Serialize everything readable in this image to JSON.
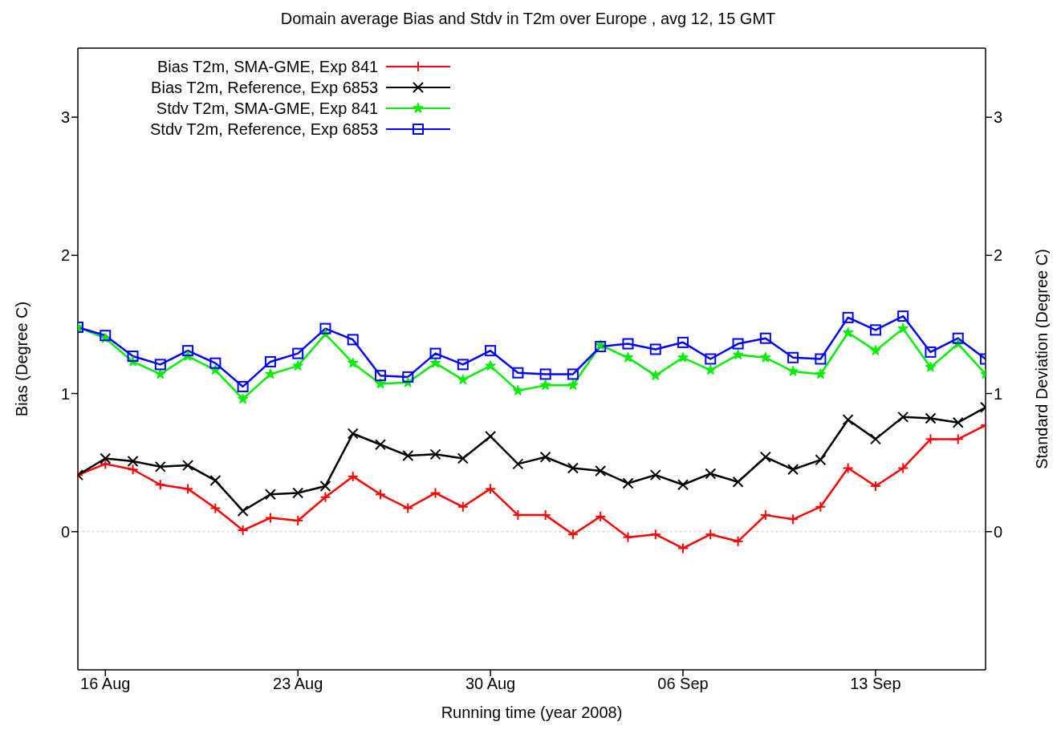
{
  "chart_data": {
    "type": "line",
    "title": "Domain average Bias and Stdv in T2m over Europe , avg 12, 15 GMT",
    "xlabel": "Running time (year 2008)",
    "ylabel": "Bias (Degree C)",
    "y2label": "Standard Deviation (Degree C)",
    "x": [
      "2008-08-15",
      "2008-08-16",
      "2008-08-17",
      "2008-08-18",
      "2008-08-19",
      "2008-08-20",
      "2008-08-21",
      "2008-08-22",
      "2008-08-23",
      "2008-08-24",
      "2008-08-25",
      "2008-08-26",
      "2008-08-27",
      "2008-08-28",
      "2008-08-29",
      "2008-08-30",
      "2008-08-31",
      "2008-09-01",
      "2008-09-02",
      "2008-09-03",
      "2008-09-04",
      "2008-09-05",
      "2008-09-06",
      "2008-09-07",
      "2008-09-08",
      "2008-09-09",
      "2008-09-10",
      "2008-09-11",
      "2008-09-12",
      "2008-09-13",
      "2008-09-14",
      "2008-09-15",
      "2008-09-16",
      "2008-09-17"
    ],
    "series": [
      {
        "name": "Bias T2m, SMA-GME, Exp 841",
        "color": "#ff0000",
        "marker": "plus",
        "values": [
          0.41,
          0.49,
          0.45,
          0.34,
          0.31,
          0.17,
          0.01,
          0.1,
          0.08,
          0.25,
          0.4,
          0.27,
          0.17,
          0.28,
          0.18,
          0.31,
          0.12,
          0.12,
          -0.02,
          0.11,
          -0.04,
          -0.02,
          -0.12,
          -0.02,
          -0.07,
          0.12,
          0.09,
          0.18,
          0.46,
          0.33,
          0.46,
          0.67,
          0.67,
          0.77
        ]
      },
      {
        "name": "Bias T2m, Reference, Exp 6853",
        "color": "#000000",
        "marker": "cross",
        "values": [
          0.41,
          0.53,
          0.51,
          0.47,
          0.48,
          0.37,
          0.15,
          0.27,
          0.28,
          0.33,
          0.71,
          0.63,
          0.55,
          0.56,
          0.53,
          0.69,
          0.49,
          0.54,
          0.46,
          0.44,
          0.35,
          0.41,
          0.34,
          0.42,
          0.36,
          0.54,
          0.45,
          0.52,
          0.81,
          0.67,
          0.83,
          0.82,
          0.79,
          0.9
        ]
      },
      {
        "name": "Stdv T2m, SMA-GME, Exp 841",
        "color": "#00ee00",
        "marker": "star",
        "axis": "y2",
        "values": [
          1.48,
          1.4,
          1.23,
          1.14,
          1.27,
          1.17,
          0.96,
          1.14,
          1.2,
          1.43,
          1.22,
          1.07,
          1.08,
          1.22,
          1.1,
          1.2,
          1.02,
          1.06,
          1.06,
          1.35,
          1.26,
          1.13,
          1.26,
          1.17,
          1.28,
          1.26,
          1.16,
          1.14,
          1.44,
          1.31,
          1.47,
          1.19,
          1.36,
          1.14
        ]
      },
      {
        "name": "Stdv T2m, Reference, Exp 6853",
        "color": "#0000ff",
        "marker": "square",
        "axis": "y2",
        "values": [
          1.48,
          1.42,
          1.27,
          1.21,
          1.31,
          1.22,
          1.05,
          1.23,
          1.29,
          1.47,
          1.39,
          1.13,
          1.12,
          1.29,
          1.21,
          1.31,
          1.15,
          1.14,
          1.14,
          1.34,
          1.36,
          1.32,
          1.37,
          1.25,
          1.36,
          1.4,
          1.26,
          1.25,
          1.55,
          1.46,
          1.56,
          1.3,
          1.4,
          1.25
        ]
      }
    ],
    "xlim": [
      "2008-08-15",
      "2008-09-17"
    ],
    "xticks": [
      {
        "value": "2008-08-16",
        "label": "16 Aug"
      },
      {
        "value": "2008-08-23",
        "label": "23 Aug"
      },
      {
        "value": "2008-08-30",
        "label": "30 Aug"
      },
      {
        "value": "2008-09-06",
        "label": "06 Sep"
      },
      {
        "value": "2008-09-13",
        "label": "13 Sep"
      }
    ],
    "ylim": [
      -1,
      3.5
    ],
    "yticks": [
      0,
      1,
      2,
      3
    ],
    "y2lim": [
      -1,
      3.5
    ],
    "y2ticks": [
      0,
      1,
      2,
      3
    ],
    "ref_lines": [
      {
        "axis": "y",
        "value": 0,
        "color": "#bbbbbb",
        "line_style": "dotted"
      }
    ],
    "line_style": "solid",
    "grid": false,
    "legend": "top left"
  }
}
